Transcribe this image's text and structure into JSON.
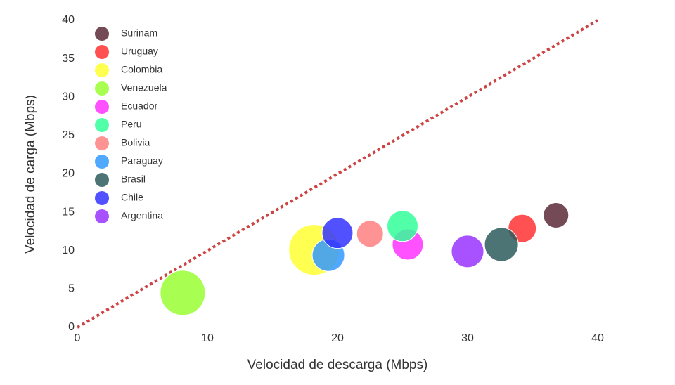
{
  "chart_data": {
    "type": "bubble",
    "x_label": "Velocidad de descarga (Mbps)",
    "y_label": "Velocidad de carga (Mbps)",
    "xlim": [
      0,
      40
    ],
    "xticks": [
      0,
      10,
      20,
      30,
      40
    ],
    "ylim": [
      0,
      40
    ],
    "yticks": [
      0,
      5,
      10,
      15,
      20,
      25,
      30,
      35,
      40
    ],
    "grid": false,
    "diagonal": true,
    "legend": "top-left",
    "series": [
      {
        "name": "Surinam",
        "color": "#5c2a3a",
        "x": [
          36.8
        ],
        "y": [
          14.6
        ],
        "sizes": [
          18
        ]
      },
      {
        "name": "Uruguay",
        "color": "#ff3333",
        "x": [
          34.2
        ],
        "y": [
          12.9
        ],
        "sizes": [
          20
        ]
      },
      {
        "name": "Colombia",
        "color": "#ffff33",
        "x": [
          18.2
        ],
        "y": [
          10.1
        ],
        "sizes": [
          36
        ]
      },
      {
        "name": "Venezuela",
        "color": "#99ff33",
        "x": [
          8.1
        ],
        "y": [
          4.5
        ],
        "sizes": [
          32
        ]
      },
      {
        "name": "Ecuador",
        "color": "#ff33ff",
        "x": [
          25.4
        ],
        "y": [
          10.8
        ],
        "sizes": [
          22
        ]
      },
      {
        "name": "Peru",
        "color": "#33ff99",
        "x": [
          25.0
        ],
        "y": [
          13.2
        ],
        "sizes": [
          22
        ]
      },
      {
        "name": "Bolivia",
        "color": "#ff8080",
        "x": [
          22.5
        ],
        "y": [
          12.2
        ],
        "sizes": [
          19
        ]
      },
      {
        "name": "Paraguay",
        "color": "#3399ff",
        "x": [
          19.3
        ],
        "y": [
          9.4
        ],
        "sizes": [
          23
        ]
      },
      {
        "name": "Brasil",
        "color": "#2e5c5c",
        "x": [
          32.6
        ],
        "y": [
          10.8
        ],
        "sizes": [
          24
        ]
      },
      {
        "name": "Chile",
        "color": "#3333ff",
        "x": [
          20.0
        ],
        "y": [
          12.3
        ],
        "sizes": [
          22
        ]
      },
      {
        "name": "Argentina",
        "color": "#9933ff",
        "x": [
          30.0
        ],
        "y": [
          9.9
        ],
        "sizes": [
          23
        ]
      }
    ]
  }
}
